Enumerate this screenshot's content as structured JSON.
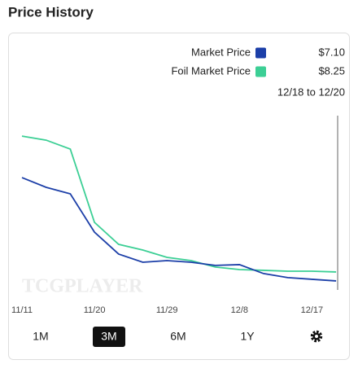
{
  "header": {
    "title": "Price History"
  },
  "chart_data": {
    "type": "line",
    "subtitle": "12/18 to 12/20",
    "watermark": "TCGPLAYER",
    "categories": [
      "11/11",
      null,
      null,
      "11/20",
      null,
      null,
      "11/29",
      null,
      null,
      "12/8",
      null,
      null,
      "12/17",
      null
    ],
    "series": [
      {
        "name": "Market Price",
        "color": "#1c3fa8",
        "values": [
          20.37,
          19.12,
          18.28,
          13.37,
          10.55,
          9.5,
          9.71,
          9.5,
          9.09,
          9.19,
          8.04,
          7.52,
          7.31,
          7.1
        ],
        "value_labels": [
          null,
          null,
          null,
          null,
          null,
          null,
          null,
          null,
          null,
          null,
          null,
          null,
          null,
          "$7.10"
        ]
      },
      {
        "name": "Foil Market Price",
        "color": "#3ccf95",
        "values": [
          25.7,
          25.18,
          24.03,
          14.62,
          11.8,
          11.07,
          10.13,
          9.71,
          8.88,
          8.56,
          8.46,
          8.35,
          8.35,
          8.25
        ],
        "value_labels": [
          null,
          null,
          null,
          null,
          null,
          null,
          null,
          null,
          null,
          null,
          null,
          null,
          null,
          "$8.25"
        ]
      }
    ],
    "ylim": [
      5,
      30
    ]
  },
  "range_buttons": {
    "options": [
      "1M",
      "3M",
      "6M",
      "1Y"
    ],
    "selected": 1
  }
}
